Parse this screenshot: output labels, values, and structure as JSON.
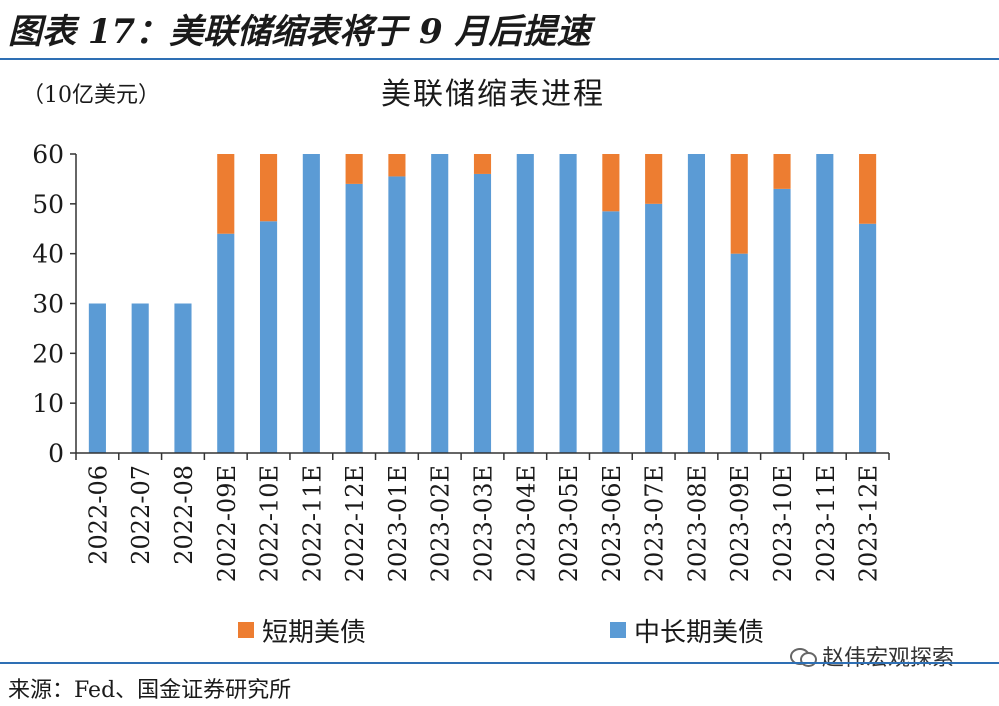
{
  "figure": {
    "title": "图表 17：美联储缩表将于 9 月后提速",
    "source": "来源：Fed、国金证券研究所",
    "watermark": "赵伟宏观探索"
  },
  "colors": {
    "long_term": "#5b9bd5",
    "short_term": "#ed7d31",
    "rule": "#2e6fb4"
  },
  "chart_data": {
    "type": "bar",
    "stacked": true,
    "title": "美联储缩表进程",
    "ylabel": "（10亿美元）",
    "xlabel": "",
    "ylim": [
      0,
      60
    ],
    "yticks": [
      0,
      10,
      20,
      30,
      40,
      50,
      60
    ],
    "grid": false,
    "legend_position": "bottom",
    "categories": [
      "2022-06",
      "2022-07",
      "2022-08",
      "2022-09E",
      "2022-10E",
      "2022-11E",
      "2022-12E",
      "2023-01E",
      "2023-02E",
      "2023-03E",
      "2023-04E",
      "2023-05E",
      "2023-06E",
      "2023-07E",
      "2023-08E",
      "2023-09E",
      "2023-10E",
      "2023-11E",
      "2023-12E"
    ],
    "series": [
      {
        "name": "中长期美债",
        "color": "#5b9bd5",
        "values": [
          30,
          30,
          30,
          44,
          46.5,
          60,
          54,
          55.5,
          60,
          56,
          60,
          60,
          48.5,
          50,
          60,
          40,
          53,
          60,
          46
        ]
      },
      {
        "name": "短期美债",
        "color": "#ed7d31",
        "values": [
          0,
          0,
          0,
          16,
          13.5,
          0,
          6,
          4.5,
          0,
          4,
          0,
          0,
          11.5,
          10,
          0,
          20,
          7,
          0,
          14
        ]
      }
    ],
    "legend_order": [
      "短期美债",
      "中长期美债"
    ]
  }
}
